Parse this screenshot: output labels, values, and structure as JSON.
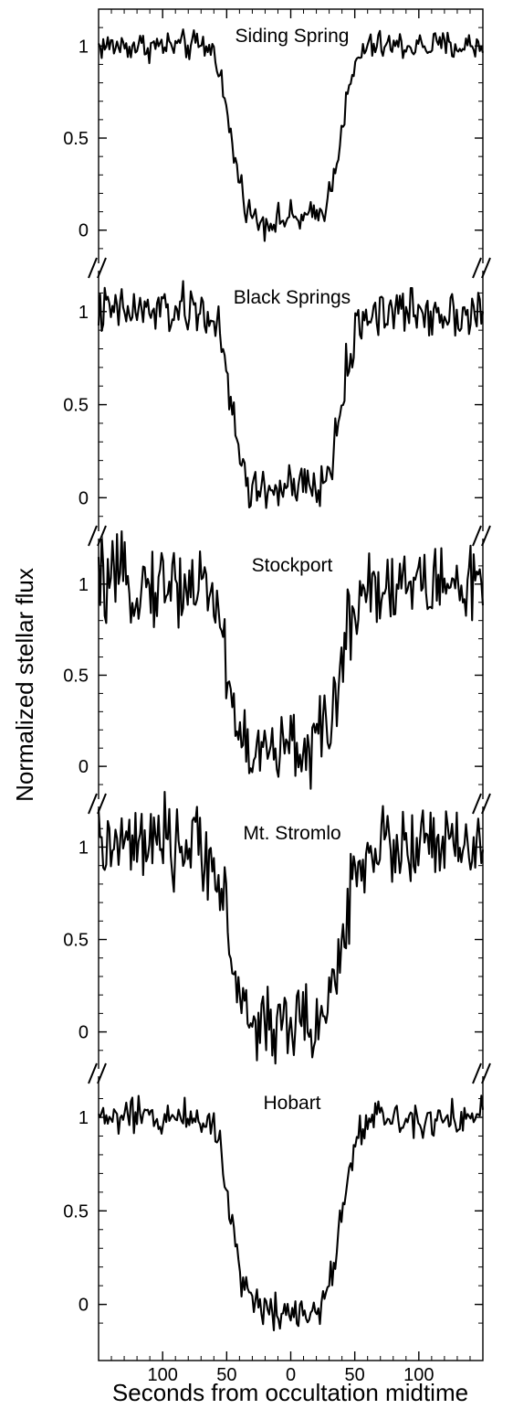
{
  "chart_data": {
    "type": "line",
    "xlabel": "Seconds from occultation midtime",
    "ylabel": "Normalized stellar flux",
    "xlim": [
      -150,
      150
    ],
    "x_ticks": [
      -100,
      -50,
      0,
      50,
      100
    ],
    "x_tick_labels": [
      "100",
      "50",
      "0",
      "50",
      "100"
    ],
    "ylim": [
      -0.15,
      1.22
    ],
    "y_ticks": [
      0,
      0.5,
      1
    ],
    "y_tick_labels": [
      "0",
      "0.5",
      "1"
    ],
    "axis_break_marks": true,
    "grid": false,
    "line_color": "#000000",
    "panels": [
      {
        "name": "Siding Spring",
        "ylim": [
          -0.18,
          1.2
        ],
        "series": [
          {
            "name": "Siding Spring",
            "x": [
              -150,
              -100,
              -70,
              -64,
              -60,
              -56,
              -52,
              -48,
              -44,
              -40,
              -36,
              -32,
              -28,
              -24,
              -20,
              -15,
              -10,
              -5,
              0,
              5,
              10,
              15,
              20,
              24,
              28,
              32,
              36,
              40,
              44,
              48,
              52,
              56,
              60,
              64,
              70,
              100,
              150
            ],
            "y": [
              1.0,
              1.0,
              1.0,
              0.99,
              0.97,
              0.9,
              0.72,
              0.55,
              0.4,
              0.27,
              0.17,
              0.1,
              0.06,
              0.05,
              0.05,
              0.05,
              0.05,
              0.06,
              0.07,
              0.06,
              0.06,
              0.07,
              0.08,
              0.1,
              0.15,
              0.25,
              0.4,
              0.56,
              0.7,
              0.82,
              0.92,
              0.97,
              0.99,
              1.0,
              1.0,
              1.0,
              1.0
            ],
            "noise": 0.04
          }
        ]
      },
      {
        "name": "Black Springs",
        "ylim": [
          -0.18,
          1.22
        ],
        "series": [
          {
            "name": "Black Springs",
            "x": [
              -150,
              -100,
              -70,
              -64,
              -60,
              -56,
              -52,
              -48,
              -44,
              -40,
              -36,
              -32,
              -28,
              -24,
              -20,
              -15,
              -10,
              -5,
              0,
              5,
              10,
              15,
              20,
              24,
              28,
              32,
              36,
              40,
              44,
              48,
              52,
              56,
              60,
              64,
              70,
              100,
              150
            ],
            "y": [
              1.0,
              1.0,
              1.0,
              0.99,
              0.96,
              0.88,
              0.72,
              0.55,
              0.38,
              0.24,
              0.13,
              0.06,
              0.03,
              0.04,
              0.05,
              0.04,
              0.05,
              0.05,
              0.05,
              0.04,
              0.05,
              0.05,
              0.05,
              0.06,
              0.1,
              0.2,
              0.36,
              0.53,
              0.68,
              0.8,
              0.9,
              0.96,
              0.99,
              1.0,
              1.0,
              1.0,
              1.0
            ],
            "noise": 0.065
          }
        ]
      },
      {
        "name": "Stockport",
        "ylim": [
          -0.18,
          1.25
        ],
        "series": [
          {
            "name": "Stockport",
            "x": [
              -150,
              -100,
              -70,
              -64,
              -60,
              -56,
              -52,
              -48,
              -44,
              -40,
              -36,
              -32,
              -28,
              -24,
              -20,
              -15,
              -10,
              -5,
              0,
              5,
              10,
              15,
              20,
              24,
              28,
              32,
              36,
              40,
              44,
              48,
              52,
              56,
              60,
              64,
              70,
              100,
              150
            ],
            "y": [
              1.0,
              1.0,
              1.0,
              0.98,
              0.94,
              0.84,
              0.65,
              0.45,
              0.3,
              0.18,
              0.12,
              0.08,
              0.06,
              0.06,
              0.07,
              0.08,
              0.08,
              0.09,
              0.1,
              0.1,
              0.11,
              0.12,
              0.12,
              0.14,
              0.19,
              0.28,
              0.42,
              0.57,
              0.72,
              0.84,
              0.93,
              0.98,
              1.0,
              1.0,
              1.0,
              1.0,
              1.0
            ],
            "noise": 0.11
          }
        ]
      },
      {
        "name": "Mt. Stromlo",
        "ylim": [
          -0.2,
          1.22
        ],
        "series": [
          {
            "name": "Mt. Stromlo",
            "x": [
              -150,
              -100,
              -70,
              -64,
              -60,
              -56,
              -52,
              -48,
              -44,
              -40,
              -36,
              -32,
              -28,
              -24,
              -20,
              -15,
              -10,
              -5,
              0,
              5,
              10,
              15,
              20,
              24,
              28,
              32,
              36,
              40,
              44,
              48,
              52,
              56,
              60,
              64,
              70,
              100,
              150
            ],
            "y": [
              1.0,
              1.0,
              1.0,
              0.98,
              0.93,
              0.83,
              0.66,
              0.48,
              0.32,
              0.2,
              0.11,
              0.06,
              0.04,
              0.05,
              0.05,
              0.05,
              0.05,
              0.05,
              0.05,
              0.04,
              0.05,
              0.05,
              0.05,
              0.06,
              0.1,
              0.19,
              0.34,
              0.5,
              0.66,
              0.8,
              0.9,
              0.96,
              0.99,
              1.0,
              1.0,
              1.0,
              1.0
            ],
            "noise": 0.11
          }
        ]
      },
      {
        "name": "Hobart",
        "ylim": [
          -0.3,
          1.22
        ],
        "series": [
          {
            "name": "Hobart",
            "x": [
              -150,
              -100,
              -70,
              -64,
              -60,
              -56,
              -52,
              -48,
              -44,
              -40,
              -36,
              -32,
              -28,
              -24,
              -20,
              -15,
              -10,
              -5,
              0,
              5,
              10,
              15,
              20,
              24,
              28,
              32,
              36,
              40,
              44,
              48,
              52,
              56,
              60,
              64,
              70,
              100,
              150
            ],
            "y": [
              1.0,
              1.0,
              1.0,
              0.99,
              0.96,
              0.87,
              0.7,
              0.52,
              0.36,
              0.22,
              0.11,
              0.04,
              0.0,
              -0.01,
              -0.02,
              -0.02,
              -0.03,
              -0.03,
              -0.03,
              -0.03,
              -0.03,
              -0.02,
              -0.02,
              0.0,
              0.05,
              0.15,
              0.31,
              0.5,
              0.67,
              0.81,
              0.91,
              0.97,
              0.99,
              1.0,
              1.0,
              1.0,
              1.0
            ],
            "noise": 0.05
          }
        ]
      }
    ]
  }
}
